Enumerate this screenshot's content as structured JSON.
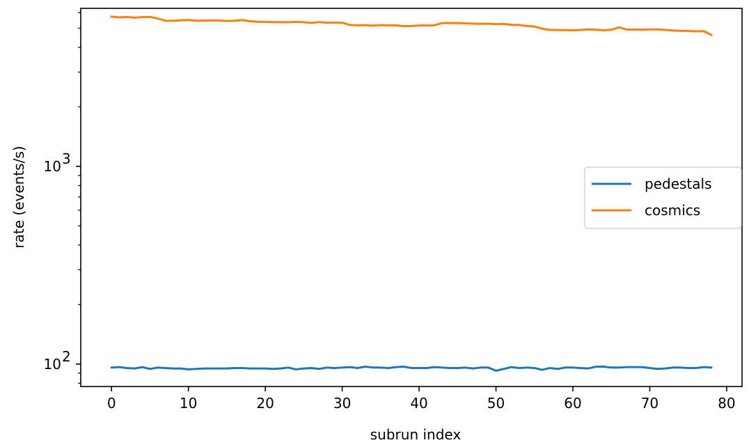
{
  "chart_data": {
    "type": "line",
    "xlabel": "subrun index",
    "ylabel": "rate (events/s)",
    "yscale": "log",
    "xlim": [
      -4,
      82
    ],
    "ylim": [
      77,
      6300
    ],
    "x_ticks": [
      0,
      10,
      20,
      30,
      40,
      50,
      60,
      70,
      80
    ],
    "y_major_ticks": [
      {
        "value": 100,
        "base": "10",
        "exp": "2"
      },
      {
        "value": 1000,
        "base": "10",
        "exp": "3"
      }
    ],
    "y_minor_ticks": [
      80,
      90,
      200,
      300,
      400,
      500,
      600,
      700,
      800,
      900,
      2000,
      3000,
      4000,
      5000,
      6000
    ],
    "legend": {
      "position": "center-right"
    },
    "grid": false,
    "series": [
      {
        "name": "pedestals",
        "color": "#1f77b4",
        "y": [
          96,
          96.5,
          95.5,
          95,
          96.5,
          94.5,
          96,
          95.5,
          95,
          95,
          94,
          94.5,
          95,
          95,
          95,
          95,
          95.5,
          95.5,
          95,
          95,
          95,
          94.5,
          95,
          96,
          94,
          95,
          95.5,
          94.5,
          96,
          95.5,
          96,
          96.5,
          95.5,
          97,
          96,
          96,
          95.5,
          96.5,
          97,
          95.5,
          95.5,
          95.5,
          96.5,
          96,
          95.5,
          95.5,
          96,
          95,
          96,
          96,
          92.5,
          94.5,
          96.5,
          95.5,
          96,
          95.5,
          93.5,
          95.5,
          94.5,
          96,
          96,
          95.5,
          95,
          97,
          97,
          96,
          96,
          96.5,
          96.5,
          96.5,
          95.5,
          94.5,
          95,
          96,
          96,
          95.5,
          95.5,
          96.5,
          96
        ]
      },
      {
        "name": "cosmics",
        "color": "#ff7f0e",
        "y": [
          5720,
          5670,
          5700,
          5650,
          5690,
          5700,
          5600,
          5450,
          5450,
          5480,
          5500,
          5460,
          5460,
          5480,
          5470,
          5440,
          5450,
          5500,
          5420,
          5390,
          5380,
          5370,
          5360,
          5360,
          5380,
          5360,
          5320,
          5370,
          5330,
          5330,
          5330,
          5190,
          5170,
          5180,
          5150,
          5180,
          5170,
          5170,
          5120,
          5130,
          5160,
          5160,
          5170,
          5310,
          5310,
          5310,
          5290,
          5270,
          5260,
          5270,
          5240,
          5260,
          5200,
          5190,
          5130,
          5100,
          4970,
          4900,
          4900,
          4890,
          4880,
          4900,
          4930,
          4910,
          4880,
          4910,
          5050,
          4920,
          4920,
          4910,
          4930,
          4930,
          4900,
          4870,
          4850,
          4840,
          4820,
          4830,
          4630
        ]
      }
    ]
  }
}
